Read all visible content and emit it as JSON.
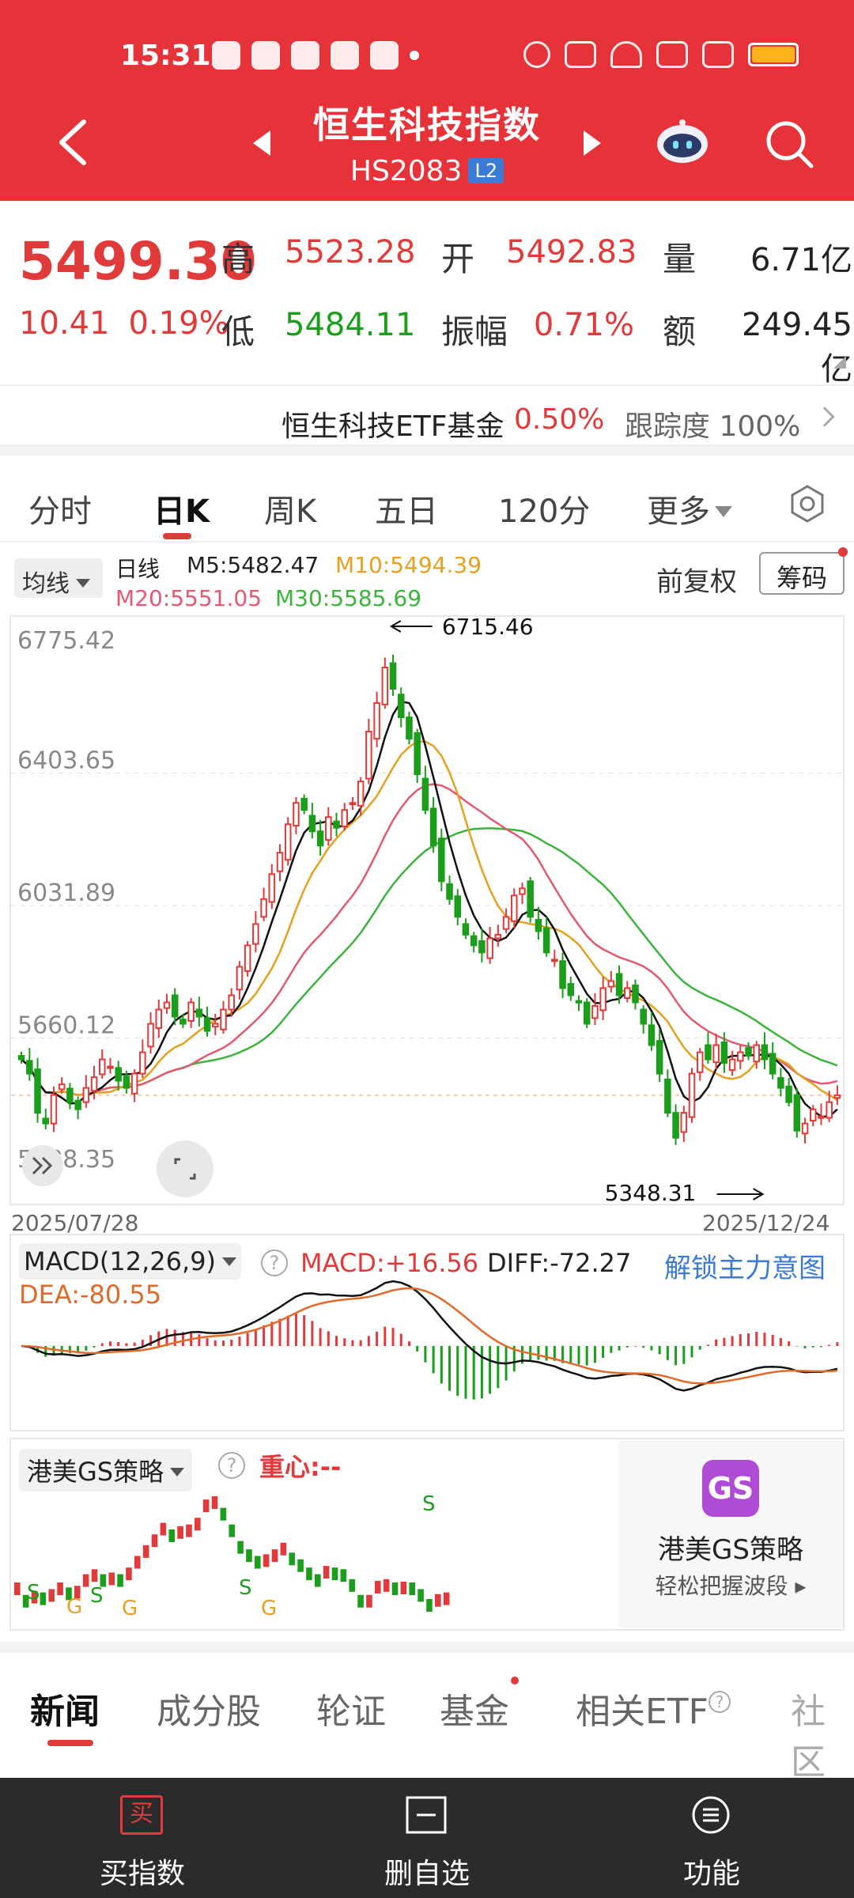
{
  "status_bar": {
    "time": "15:31"
  },
  "header": {
    "title": "恒生科技指数",
    "code": "HS2083",
    "badge": "L2"
  },
  "quote": {
    "price": "5499.30",
    "change": "10.41",
    "change_pct": "0.19%",
    "high_label": "高",
    "high": "5523.28",
    "open_label": "开",
    "open": "5492.83",
    "vol_label": "量",
    "vol": "6.71亿",
    "low_label": "低",
    "low": "5484.11",
    "amp_label": "振幅",
    "amp": "0.71%",
    "amount_label": "额",
    "amount": "249.45亿"
  },
  "etf": {
    "name": "恒生科技ETF基金",
    "pct": "0.50%",
    "track_label": "跟踪度",
    "track": "100%"
  },
  "tabs": [
    "分时",
    "日K",
    "周K",
    "五日",
    "120分",
    "更多"
  ],
  "ma": {
    "btn": "均线",
    "line": "日线",
    "m5": "M5:5482.47",
    "m10": "M10:5494.39",
    "m20": "M20:5551.05",
    "m30": "M30:5585.69",
    "fq": "前复权",
    "chip": "筹码"
  },
  "chart_data": {
    "type": "candlestick",
    "y_ticks": [
      "6775.42",
      "6403.65",
      "6031.89",
      "5660.12",
      "5288.35"
    ],
    "ylim": [
      5288.35,
      6775.42
    ],
    "start_date": "2025/07/28",
    "end_date": "2025/12/24",
    "max_label": "6715.46",
    "min_label": "5348.31",
    "close": [
      5600,
      5560,
      5450,
      5420,
      5500,
      5530,
      5480,
      5460,
      5520,
      5550,
      5600,
      5580,
      5540,
      5520,
      5560,
      5620,
      5700,
      5740,
      5760,
      5720,
      5700,
      5760,
      5720,
      5680,
      5700,
      5740,
      5780,
      5860,
      5920,
      5980,
      6050,
      6120,
      6180,
      6260,
      6320,
      6300,
      6240,
      6200,
      6280,
      6250,
      6300,
      6320,
      6380,
      6520,
      6600,
      6700,
      6640,
      6560,
      6500,
      6400,
      6300,
      6200,
      6100,
      6050,
      6000,
      5950,
      5920,
      5900,
      5940,
      5950,
      6000,
      6060,
      6080,
      6000,
      5960,
      5900,
      5880,
      5800,
      5780,
      5760,
      5700,
      5750,
      5800,
      5820,
      5780,
      5800,
      5760,
      5700,
      5640,
      5560,
      5450,
      5380,
      5450,
      5560,
      5620,
      5600,
      5640,
      5590,
      5600,
      5620,
      5610,
      5640,
      5600,
      5560,
      5520,
      5480,
      5400,
      5420,
      5460,
      5440,
      5480,
      5499.3
    ]
  },
  "macd": {
    "label": "MACD(12,26,9)",
    "macd": "MACD:+16.56",
    "diff": "DIFF:-72.27",
    "dea": "DEA:-80.55",
    "unlock": "解锁主力意图"
  },
  "gs": {
    "label": "港美GS策略",
    "center": "重心:--",
    "promo_title": "港美GS策略",
    "promo_sub": "轻松把握波段 ▸",
    "logo": "GS",
    "marks": [
      {
        "t": "S",
        "c": "#1b9e1b"
      },
      {
        "t": "G",
        "c": "#e6a020"
      },
      {
        "t": "S",
        "c": "#1b9e1b"
      },
      {
        "t": "G",
        "c": "#e6a020"
      },
      {
        "t": "S",
        "c": "#1b9e1b"
      },
      {
        "t": "G",
        "c": "#e6a020"
      },
      {
        "t": "S",
        "c": "#1b9e1b"
      }
    ]
  },
  "news_tabs": [
    "新闻",
    "成分股",
    "轮证",
    "基金",
    "相关ETF",
    "社区"
  ],
  "bottom": {
    "buy_icon": "买",
    "buy": "买指数",
    "del": "删自选",
    "func": "功能"
  }
}
